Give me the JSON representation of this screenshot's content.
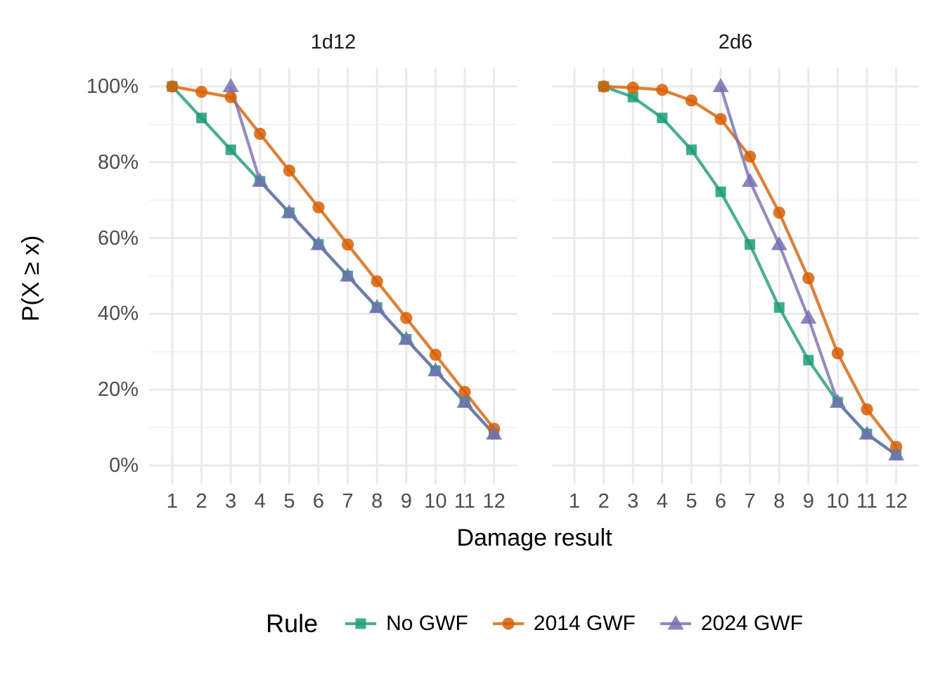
{
  "chart_data": {
    "type": "line",
    "xlabel": "Damage result",
    "ylabel": "P(X ≥ x)",
    "x_ticks": [
      "1",
      "2",
      "3",
      "4",
      "5",
      "6",
      "7",
      "8",
      "9",
      "10",
      "11",
      "12"
    ],
    "y_ticks": [
      {
        "label": "0%",
        "value": 0
      },
      {
        "label": "20%",
        "value": 20
      },
      {
        "label": "40%",
        "value": 40
      },
      {
        "label": "60%",
        "value": 60
      },
      {
        "label": "80%",
        "value": 80
      },
      {
        "label": "100%",
        "value": 100
      }
    ],
    "ylim": [
      0,
      100
    ],
    "y_major_gridlines": [
      0,
      20,
      40,
      60,
      80,
      100
    ],
    "y_minor_gridlines": [
      10,
      30,
      50,
      70,
      90
    ],
    "grid": {
      "major_color": "#EAEAEA",
      "minor_color": "#F0F0F0"
    },
    "series_line_opacity": 0.8,
    "series_marker_opacity": 0.85,
    "text_colors": {
      "ticks": "#4D4D4D",
      "titles": "#000000",
      "strip": "#1A1A1A"
    },
    "facets": [
      {
        "title": "1d12",
        "series": [
          {
            "name": "No GWF",
            "marker": "square",
            "color": "#1B9E77",
            "points": [
              [
                1,
                100
              ],
              [
                2,
                91.7
              ],
              [
                3,
                83.3
              ],
              [
                4,
                75
              ],
              [
                5,
                66.7
              ],
              [
                6,
                58.3
              ],
              [
                7,
                50
              ],
              [
                8,
                41.7
              ],
              [
                9,
                33.3
              ],
              [
                10,
                25
              ],
              [
                11,
                16.7
              ],
              [
                12,
                8.3
              ]
            ]
          },
          {
            "name": "2014 GWF",
            "marker": "circle",
            "color": "#D95F02",
            "points": [
              [
                1,
                100
              ],
              [
                2,
                98.6
              ],
              [
                3,
                97.2
              ],
              [
                4,
                87.5
              ],
              [
                5,
                77.8
              ],
              [
                6,
                68.1
              ],
              [
                7,
                58.3
              ],
              [
                8,
                48.6
              ],
              [
                9,
                38.9
              ],
              [
                10,
                29.2
              ],
              [
                11,
                19.4
              ],
              [
                12,
                9.7
              ]
            ]
          },
          {
            "name": "2024 GWF",
            "marker": "triangle",
            "color": "#7570B3",
            "points": [
              [
                3,
                100
              ],
              [
                4,
                75
              ],
              [
                5,
                66.7
              ],
              [
                6,
                58.3
              ],
              [
                7,
                50
              ],
              [
                8,
                41.7
              ],
              [
                9,
                33.3
              ],
              [
                10,
                25
              ],
              [
                11,
                16.7
              ],
              [
                12,
                8.3
              ]
            ]
          }
        ]
      },
      {
        "title": "2d6",
        "series": [
          {
            "name": "No GWF",
            "marker": "square",
            "color": "#1B9E77",
            "points": [
              [
                2,
                100
              ],
              [
                3,
                97.2
              ],
              [
                4,
                91.7
              ],
              [
                5,
                83.3
              ],
              [
                6,
                72.2
              ],
              [
                7,
                58.3
              ],
              [
                8,
                41.7
              ],
              [
                9,
                27.8
              ],
              [
                10,
                16.7
              ],
              [
                11,
                8.3
              ],
              [
                12,
                2.8
              ]
            ]
          },
          {
            "name": "2014 GWF",
            "marker": "circle",
            "color": "#D95F02",
            "points": [
              [
                2,
                100
              ],
              [
                3,
                99.7
              ],
              [
                4,
                99.1
              ],
              [
                5,
                96.3
              ],
              [
                6,
                91.4
              ],
              [
                7,
                81.5
              ],
              [
                8,
                66.7
              ],
              [
                9,
                49.4
              ],
              [
                10,
                29.6
              ],
              [
                11,
                14.8
              ],
              [
                12,
                4.9
              ]
            ]
          },
          {
            "name": "2024 GWF",
            "marker": "triangle",
            "color": "#7570B3",
            "points": [
              [
                6,
                100
              ],
              [
                7,
                75
              ],
              [
                8,
                58.3
              ],
              [
                9,
                38.9
              ],
              [
                10,
                16.7
              ],
              [
                11,
                8.3
              ],
              [
                12,
                2.8
              ]
            ]
          }
        ]
      }
    ],
    "legend": {
      "title": "Rule",
      "position": "bottom",
      "entries": [
        {
          "label": "No GWF",
          "marker": "square",
          "color": "#1B9E77"
        },
        {
          "label": "2014 GWF",
          "marker": "circle",
          "color": "#D95F02"
        },
        {
          "label": "2024 GWF",
          "marker": "triangle",
          "color": "#7570B3"
        }
      ]
    }
  }
}
